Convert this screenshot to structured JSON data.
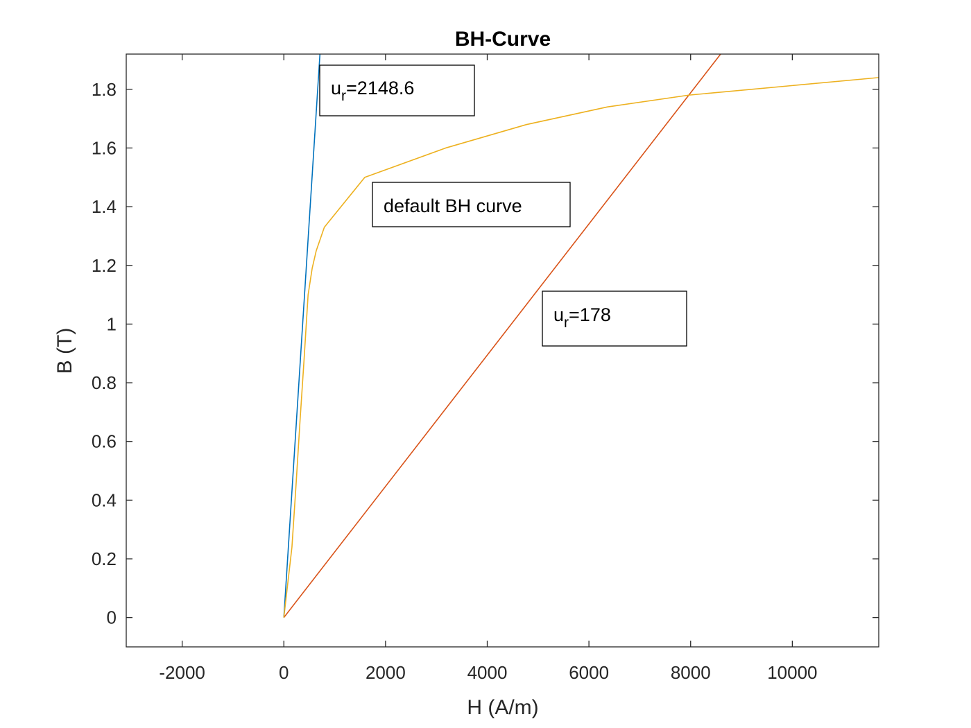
{
  "chart_data": {
    "type": "line",
    "title": "BH-Curve",
    "xlabel": "H (A/m)",
    "ylabel": "B (T)",
    "xlim": [
      -3100,
      11700
    ],
    "ylim": [
      -0.1,
      1.92
    ],
    "x_ticks": [
      -2000,
      0,
      2000,
      4000,
      6000,
      8000,
      10000
    ],
    "x_tick_labels": [
      "-2000",
      "0",
      "2000",
      "4000",
      "6000",
      "8000",
      "10000"
    ],
    "y_ticks": [
      0,
      0.2,
      0.4,
      0.6,
      0.8,
      1,
      1.2,
      1.4,
      1.6,
      1.8
    ],
    "y_tick_labels": [
      "0",
      "0.2",
      "0.4",
      "0.6",
      "0.8",
      "1",
      "1.2",
      "1.4",
      "1.6",
      "1.8"
    ],
    "grid": false,
    "series": [
      {
        "color": "#0072BD",
        "x": [
          0,
          710
        ],
        "y": [
          0,
          1.92
        ]
      },
      {
        "color": "#D95319",
        "x": [
          0,
          8590
        ],
        "y": [
          0,
          1.92
        ]
      },
      {
        "color": "#EDB120",
        "x": [
          0,
          159,
          239,
          318,
          398,
          477,
          557,
          637,
          796,
          1592,
          3183,
          4775,
          6366,
          7958,
          11700
        ],
        "y": [
          0,
          0.24,
          0.45,
          0.67,
          0.88,
          1.1,
          1.19,
          1.25,
          1.33,
          1.5,
          1.6,
          1.68,
          1.74,
          1.78,
          1.84
        ]
      }
    ],
    "annotations": [
      {
        "base": "u",
        "sub": "r",
        "rest": "=2148.6"
      },
      {
        "text": "default BH curve"
      },
      {
        "base": "u",
        "sub": "r",
        "rest": "=178"
      }
    ]
  }
}
